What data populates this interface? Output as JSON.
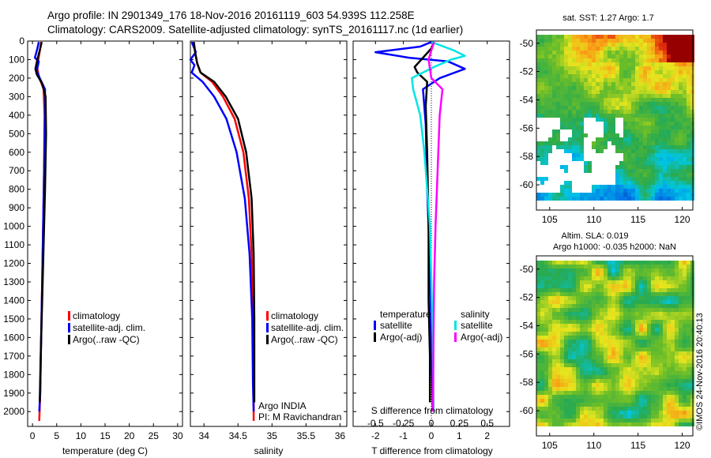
{
  "header": {
    "line1": "Argo profile: IN 2901349_176 18-Nov-2016 20161119_603 54.939S 112.258E",
    "line2": "Climatology: CARS2009. Satellite-adjusted climatology: synTS_20161117.nc (1d earlier)"
  },
  "colors": {
    "climatology": "#ff0000",
    "satellite_adj": "#0000ff",
    "argo": "#000000",
    "salinity_satellite": "#00e5e5",
    "salinity_argo": "#ff00ff"
  },
  "chart_data": [
    {
      "type": "line",
      "id": "temperature",
      "xlabel": "temperature (deg C)",
      "xlim": [
        -1,
        31
      ],
      "xticks": [
        "0",
        "5",
        "10",
        "15",
        "20",
        "25",
        "30"
      ],
      "xtick_values": [
        0,
        5,
        10,
        15,
        20,
        25,
        30
      ],
      "ylim": [
        0,
        2080
      ],
      "yticks": [
        "0",
        "100",
        "200",
        "300",
        "400",
        "500",
        "600",
        "700",
        "800",
        "900",
        "1000",
        "1100",
        "1200",
        "1300",
        "1400",
        "1500",
        "1600",
        "1700",
        "1800",
        "1900",
        "2000"
      ],
      "legend": [
        "climatology",
        "satellite-adj. clim.",
        "Argo(..raw -QC)"
      ],
      "series": [
        {
          "name": "climatology",
          "color": "#ff0000",
          "points": [
            [
              1.8,
              5
            ],
            [
              1.6,
              40
            ],
            [
              1.2,
              100
            ],
            [
              1.0,
              150
            ],
            [
              1.3,
              190
            ],
            [
              2.3,
              260
            ],
            [
              2.5,
              400
            ],
            [
              2.4,
              700
            ],
            [
              2.2,
              1000
            ],
            [
              2.0,
              1300
            ],
            [
              1.8,
              1600
            ],
            [
              1.6,
              1900
            ],
            [
              1.4,
              2050
            ]
          ]
        },
        {
          "name": "satellite-adj. clim.",
          "color": "#0000ff",
          "points": [
            [
              1.3,
              5
            ],
            [
              1.0,
              40
            ],
            [
              0.5,
              90
            ],
            [
              1.3,
              110
            ],
            [
              0.9,
              160
            ],
            [
              1.5,
              200
            ],
            [
              2.6,
              260
            ],
            [
              2.6,
              400
            ],
            [
              2.4,
              700
            ],
            [
              2.2,
              1000
            ],
            [
              2.0,
              1300
            ],
            [
              1.8,
              1600
            ],
            [
              1.6,
              1900
            ],
            [
              1.4,
              2000
            ]
          ]
        },
        {
          "name": "Argo(..raw -QC)",
          "color": "#000000",
          "points": [
            [
              1.9,
              5
            ],
            [
              1.6,
              40
            ],
            [
              1.0,
              100
            ],
            [
              0.6,
              150
            ],
            [
              0.9,
              180
            ],
            [
              2.0,
              230
            ],
            [
              2.7,
              300
            ],
            [
              2.8,
              500
            ],
            [
              2.6,
              800
            ],
            [
              2.3,
              1100
            ],
            [
              2.0,
              1400
            ],
            [
              1.7,
              1700
            ],
            [
              1.5,
              1950
            ]
          ]
        }
      ]
    },
    {
      "type": "line",
      "id": "salinity",
      "xlabel": "salinity",
      "xlim": [
        33.8,
        36.1
      ],
      "xticks": [
        "34",
        "34.5",
        "35",
        "35.5",
        "36"
      ],
      "xtick_values": [
        34,
        34.5,
        35,
        35.5,
        36
      ],
      "ylim": [
        0,
        2080
      ],
      "legend": [
        "climatology",
        "satellite-adj. clim.",
        "Argo(..raw -QC)"
      ],
      "annotations": [
        "Argo INDIA",
        "PI: M Ravichandran"
      ],
      "series": [
        {
          "name": "climatology",
          "color": "#ff0000",
          "points": [
            [
              33.85,
              5
            ],
            [
              33.87,
              60
            ],
            [
              33.9,
              120
            ],
            [
              33.95,
              170
            ],
            [
              34.12,
              220
            ],
            [
              34.28,
              300
            ],
            [
              34.45,
              420
            ],
            [
              34.58,
              600
            ],
            [
              34.66,
              850
            ],
            [
              34.7,
              1150
            ],
            [
              34.72,
              1500
            ],
            [
              34.73,
              1850
            ],
            [
              34.73,
              2050
            ]
          ]
        },
        {
          "name": "satellite-adj. clim.",
          "color": "#0000ff",
          "points": [
            [
              33.82,
              5
            ],
            [
              33.88,
              60
            ],
            [
              33.8,
              100
            ],
            [
              33.86,
              130
            ],
            [
              33.82,
              170
            ],
            [
              33.98,
              220
            ],
            [
              34.15,
              300
            ],
            [
              34.33,
              420
            ],
            [
              34.48,
              600
            ],
            [
              34.6,
              850
            ],
            [
              34.67,
              1150
            ],
            [
              34.71,
              1500
            ],
            [
              34.72,
              1850
            ],
            [
              34.73,
              2000
            ]
          ]
        },
        {
          "name": "Argo(..raw -QC)",
          "color": "#000000",
          "points": [
            [
              33.85,
              5
            ],
            [
              33.87,
              60
            ],
            [
              33.9,
              120
            ],
            [
              33.95,
              170
            ],
            [
              34.15,
              220
            ],
            [
              34.32,
              300
            ],
            [
              34.5,
              420
            ],
            [
              34.62,
              600
            ],
            [
              34.7,
              850
            ],
            [
              34.73,
              1150
            ],
            [
              34.74,
              1500
            ],
            [
              34.74,
              1850
            ],
            [
              34.74,
              1950
            ]
          ]
        }
      ]
    },
    {
      "type": "line",
      "id": "difference",
      "xlabel": "T difference from climatology",
      "xlabel_top": "S difference from climatology",
      "xlim": [
        -2.8,
        2.8
      ],
      "xticks": [
        "-2",
        "-1",
        "0",
        "1",
        "2"
      ],
      "xtick_values": [
        -2,
        -1,
        0,
        1,
        2
      ],
      "xticks_top": [
        "-0.5",
        "-0.25",
        "0",
        "0.25",
        "0.5"
      ],
      "xticks_top_values": [
        -0.5,
        -0.25,
        0,
        0.25,
        0.5
      ],
      "ylim": [
        0,
        2080
      ],
      "legend_left_title": "temperature",
      "legend_right_title": "salinity",
      "legend": [
        "satellite",
        "Argo(-adj)",
        "satellite",
        "Argo(-adj)"
      ],
      "series": [
        {
          "name": "satellite",
          "group": "temperature",
          "color": "#0000ff",
          "points": [
            [
              0.0,
              5
            ],
            [
              -0.4,
              30
            ],
            [
              -2.0,
              60
            ],
            [
              -0.8,
              90
            ],
            [
              0.6,
              110
            ],
            [
              1.2,
              150
            ],
            [
              0.3,
              200
            ],
            [
              -0.3,
              260
            ],
            [
              -0.2,
              450
            ],
            [
              -0.15,
              800
            ],
            [
              -0.05,
              1200
            ],
            [
              0.0,
              1600
            ],
            [
              0.05,
              2000
            ]
          ]
        },
        {
          "name": "Argo(-adj)",
          "group": "temperature",
          "color": "#000000",
          "points": [
            [
              0.1,
              5
            ],
            [
              0.0,
              40
            ],
            [
              -0.3,
              90
            ],
            [
              -0.6,
              140
            ],
            [
              -0.5,
              170
            ],
            [
              -0.15,
              220
            ],
            [
              -0.2,
              350
            ],
            [
              -0.15,
              600
            ],
            [
              -0.1,
              1000
            ],
            [
              -0.1,
              1400
            ],
            [
              -0.05,
              1700
            ],
            [
              -0.05,
              1950
            ]
          ]
        },
        {
          "name": "satellite",
          "group": "salinity",
          "color": "#00e5e5",
          "points": [
            [
              0.0,
              5
            ],
            [
              0.8,
              50
            ],
            [
              1.2,
              80
            ],
            [
              0.7,
              100
            ],
            [
              0.1,
              140
            ],
            [
              -0.7,
              200
            ],
            [
              -0.65,
              260
            ],
            [
              -0.4,
              400
            ],
            [
              -0.25,
              600
            ],
            [
              -0.15,
              800
            ],
            [
              -0.05,
              1000
            ],
            [
              0.0,
              1300
            ],
            [
              0.05,
              1600
            ],
            [
              0.08,
              2000
            ]
          ]
        },
        {
          "name": "Argo(-adj)",
          "group": "salinity",
          "color": "#ff00ff",
          "points": [
            [
              0.1,
              5
            ],
            [
              0.0,
              50
            ],
            [
              -0.1,
              100
            ],
            [
              0.0,
              200
            ],
            [
              0.4,
              260
            ],
            [
              0.3,
              400
            ],
            [
              0.25,
              600
            ],
            [
              0.2,
              800
            ],
            [
              0.15,
              1000
            ],
            [
              0.1,
              1300
            ],
            [
              0.08,
              1600
            ],
            [
              0.06,
              2000
            ]
          ]
        }
      ]
    },
    {
      "type": "heatmap",
      "id": "sst-map",
      "title": "sat. SST: 1.27 Argo: 1.7",
      "xlim": [
        103.5,
        121.2
      ],
      "ylim": [
        -61.0,
        -49.4
      ],
      "xticks": [
        "105",
        "110",
        "115",
        "120"
      ],
      "xtick_values": [
        105,
        110,
        115,
        120
      ],
      "yticks": [
        "-50",
        "-52",
        "-54",
        "-56",
        "-58",
        "-60"
      ],
      "ytick_values": [
        -50,
        -52,
        -54,
        -56,
        -58,
        -60
      ]
    },
    {
      "type": "heatmap",
      "id": "sla-map",
      "title": "Altim. SLA: 0.019",
      "subtitle": "Argo h1000: -0.035 h2000: NaN",
      "xlim": [
        103.5,
        121.2
      ],
      "ylim": [
        -61.0,
        -49.4
      ],
      "xticks": [
        "105",
        "110",
        "115",
        "120"
      ],
      "xtick_values": [
        105,
        110,
        115,
        120
      ],
      "yticks": [
        "-50",
        "-52",
        "-54",
        "-56",
        "-58",
        "-60"
      ],
      "ytick_values": [
        -50,
        -52,
        -54,
        -56,
        -58,
        -60
      ]
    }
  ],
  "footer_stamp": "©IMOS 24-Nov-2016 20:40:13"
}
